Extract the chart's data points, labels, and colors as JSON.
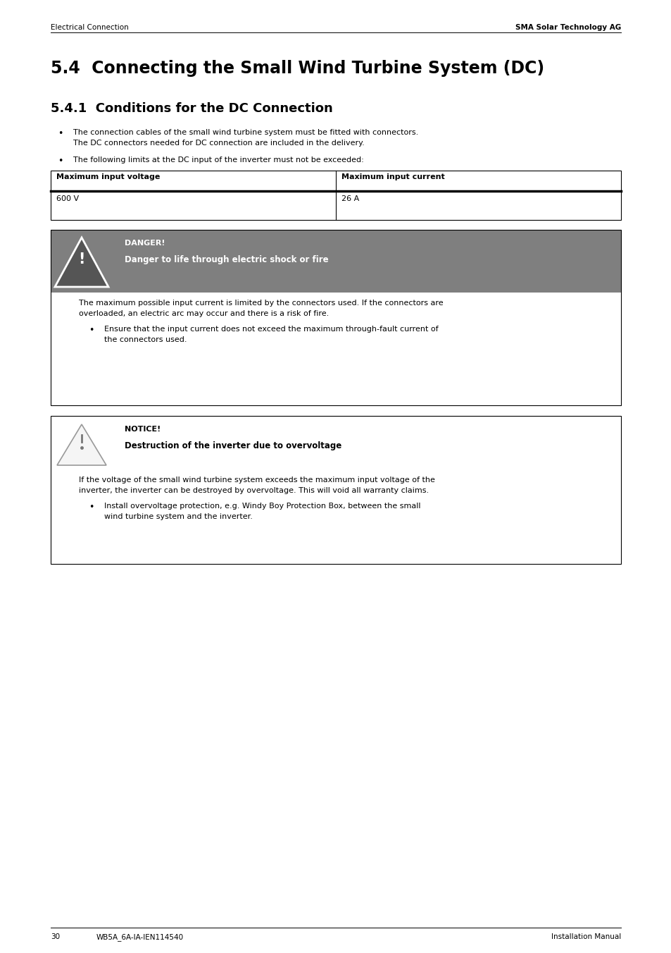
{
  "page_bg": "#ffffff",
  "header_left": "Electrical Connection",
  "header_right": "SMA Solar Technology AG",
  "header_font_size": 7.5,
  "section_title": "5.4  Connecting the Small Wind Turbine System (DC)",
  "section_title_font_size": 17,
  "subsection_title": "5.4.1  Conditions for the DC Connection",
  "subsection_title_font_size": 13,
  "bullet1_line1": "The connection cables of the small wind turbine system must be fitted with connectors.",
  "bullet1_line2": "The DC connectors needed for DC connection are included in the delivery.",
  "bullet2": "The following limits at the DC input of the inverter must not be exceeded:",
  "body_font_size": 8.0,
  "table_header": [
    "Maximum input voltage",
    "Maximum input current"
  ],
  "table_row": [
    "600 V",
    "26 A"
  ],
  "danger_bg": "#7f7f7f",
  "danger_title": "DANGER!",
  "danger_subtitle": "Danger to life through electric shock or fire",
  "danger_body_line1": "The maximum possible input current is limited by the connectors used. If the connectors are",
  "danger_body_line2": "overloaded, an electric arc may occur and there is a risk of fire.",
  "danger_bullet": "Ensure that the input current does not exceed the maximum through-fault current of\nthe connectors used.",
  "notice_title": "NOTICE!",
  "notice_subtitle": "Destruction of the inverter due to overvoltage",
  "notice_body_line1": "If the voltage of the small wind turbine system exceeds the maximum input voltage of the",
  "notice_body_line2": "inverter, the inverter can be destroyed by overvoltage. This will void all warranty claims.",
  "notice_bullet": "Install overvoltage protection, e.g. Windy Boy Protection Box, between the small\nwind turbine system and the inverter.",
  "footer_page": "30",
  "footer_code": "WB5A_6A-IA-IEN114540",
  "footer_manual": "Installation Manual",
  "footer_font_size": 7.5
}
